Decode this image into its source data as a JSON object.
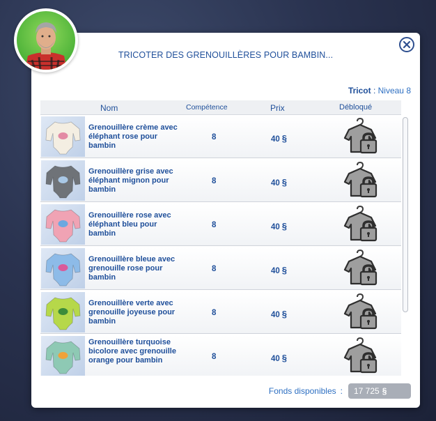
{
  "dialog": {
    "title": "TRICOTER DES GRENOUILLÈRES POUR BAMBIN...",
    "skill_name": "Tricot",
    "skill_separator": " : ",
    "skill_level": "Niveau 8"
  },
  "table": {
    "headers": {
      "name": "Nom",
      "skill": "Compétence",
      "price": "Prix",
      "unlocked": "Débloqué"
    },
    "currency": "§",
    "rows": [
      {
        "name": "Grenouillère crème avec éléphant rose pour bambin",
        "skill": "8",
        "price": "40",
        "body_color": "#f4eee2",
        "accent": "#e38aa4",
        "tall": false
      },
      {
        "name": "Grenouillère grise avec éléphant mignon pour bambin",
        "skill": "8",
        "price": "40",
        "body_color": "#6f7378",
        "accent": "#a9c8e6",
        "tall": false
      },
      {
        "name": "Grenouillère rose avec éléphant bleu pour bambin",
        "skill": "8",
        "price": "40",
        "body_color": "#f0a3b4",
        "accent": "#6aa8e0",
        "tall": false
      },
      {
        "name": "Grenouillère bleue avec grenouille rose pour bambin",
        "skill": "8",
        "price": "40",
        "body_color": "#8dbbe8",
        "accent": "#d95a9a",
        "tall": false
      },
      {
        "name": "Grenouillère verte avec grenouille joyeuse pour bambin",
        "skill": "8",
        "price": "40",
        "body_color": "#b6d84a",
        "accent": "#3d8c3a",
        "tall": false
      },
      {
        "name": "Grenouillère turquoise bicolore avec grenouille orange pour bambin",
        "skill": "8",
        "price": "40",
        "body_color": "#8ec9b4",
        "accent": "#f0a23a",
        "tall": true
      }
    ]
  },
  "funds": {
    "label": "Fonds disponibles",
    "separator": ":",
    "amount": "17 725"
  },
  "icons": {
    "close": "close-icon",
    "lock": "locked-shirt-icon",
    "avatar": "sim-portrait"
  },
  "colors": {
    "accent_blue": "#1f4f9a",
    "link_blue": "#2d6fc2",
    "avatar_bg": "#4fb43a"
  }
}
